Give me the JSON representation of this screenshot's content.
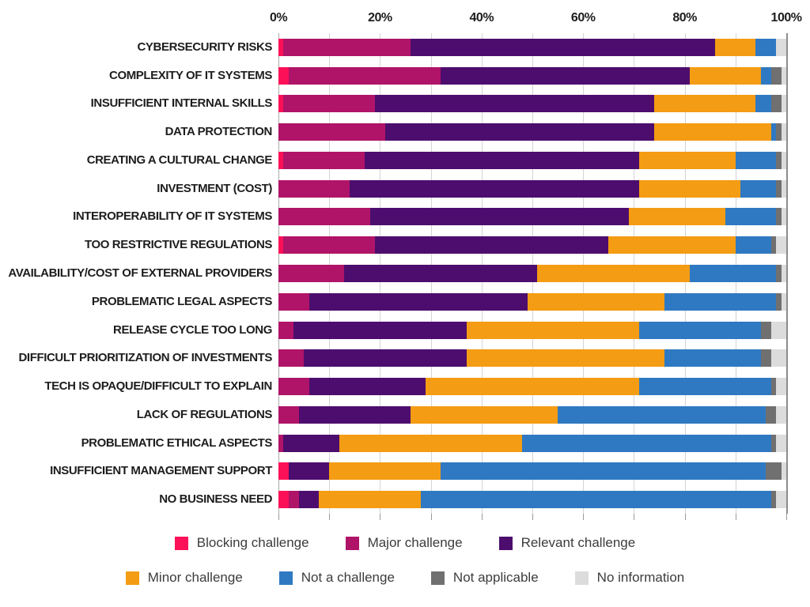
{
  "chart_data": {
    "type": "bar",
    "subtype": "horizontal-stacked-100pct",
    "title": "",
    "xlabel": "",
    "ylabel": "",
    "x_axis": {
      "min": 0,
      "max": 100,
      "unit": "%",
      "tick_labels": [
        "0%",
        "20%",
        "40%",
        "60%",
        "80%",
        "100%"
      ],
      "labeled_tick_step": 20,
      "gridline_step": 10,
      "grid": "on"
    },
    "legend_position": "bottom",
    "series": [
      {
        "name": "Blocking challenge",
        "color": "#FC1158"
      },
      {
        "name": "Major challenge",
        "color": "#B01468"
      },
      {
        "name": "Relevant challenge",
        "color": "#4D0D6E"
      },
      {
        "name": "Minor challenge",
        "color": "#F49C13"
      },
      {
        "name": "Not a challenge",
        "color": "#2F79C2"
      },
      {
        "name": "Not applicable",
        "color": "#707070"
      },
      {
        "name": "No information",
        "color": "#DCDCDC"
      }
    ],
    "categories": [
      "CYBERSECURITY RISKS",
      "COMPLEXITY OF IT SYSTEMS",
      "INSUFFICIENT INTERNAL SKILLS",
      "DATA PROTECTION",
      "CREATING A CULTURAL CHANGE",
      "INVESTMENT (COST)",
      "INTEROPERABILITY OF IT SYSTEMS",
      "TOO RESTRICTIVE REGULATIONS",
      "AVAILABILITY/COST OF EXTERNAL PROVIDERS",
      "PROBLEMATIC LEGAL ASPECTS",
      "RELEASE CYCLE TOO LONG",
      "DIFFICULT PRIORITIZATION OF INVESTMENTS",
      "TECH IS OPAQUE/DIFFICULT TO EXPLAIN",
      "LACK OF REGULATIONS",
      "PROBLEMATIC ETHICAL ASPECTS",
      "INSUFFICIENT MANAGEMENT SUPPORT",
      "NO BUSINESS NEED"
    ],
    "values": [
      [
        1,
        25,
        60,
        8,
        4,
        0,
        2
      ],
      [
        2,
        30,
        49,
        14,
        2,
        2,
        1
      ],
      [
        1,
        18,
        55,
        20,
        3,
        2,
        1
      ],
      [
        0,
        21,
        53,
        23,
        1,
        1,
        1
      ],
      [
        1,
        16,
        54,
        19,
        8,
        1,
        1
      ],
      [
        0,
        14,
        57,
        20,
        7,
        1,
        1
      ],
      [
        0,
        18,
        51,
        19,
        10,
        1,
        1
      ],
      [
        1,
        18,
        46,
        25,
        7,
        1,
        2
      ],
      [
        0,
        13,
        38,
        30,
        17,
        1,
        1
      ],
      [
        0,
        6,
        43,
        27,
        22,
        1,
        1
      ],
      [
        0,
        3,
        34,
        34,
        24,
        2,
        3
      ],
      [
        0,
        5,
        32,
        39,
        19,
        2,
        3
      ],
      [
        0,
        6,
        23,
        42,
        26,
        1,
        2
      ],
      [
        0,
        4,
        22,
        29,
        41,
        2,
        2
      ],
      [
        0,
        1,
        11,
        36,
        49,
        1,
        2
      ],
      [
        2,
        0,
        8,
        22,
        64,
        3,
        1
      ],
      [
        2,
        2,
        4,
        20,
        69,
        1,
        2
      ]
    ]
  },
  "colors": {
    "background": "#ffffff",
    "gridline": "#d4d4d4",
    "axis_line": "#8c8c8c",
    "label_text": "#1d1d1d",
    "legend_text": "#3c3c3c"
  }
}
